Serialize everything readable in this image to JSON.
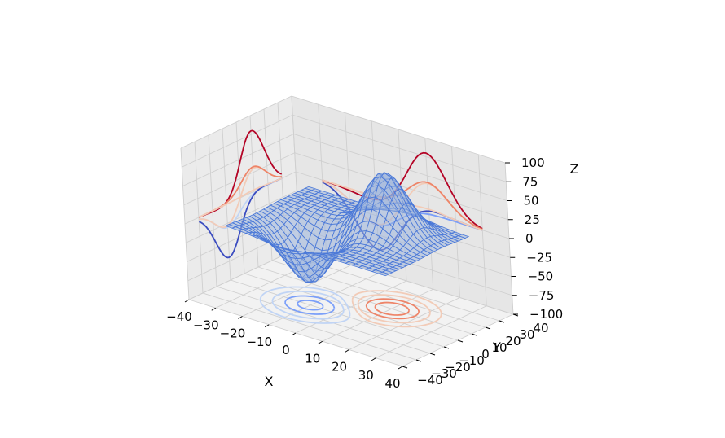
{
  "chart_data": {
    "type": "surface3d",
    "title": "",
    "xlabel": "X",
    "ylabel": "Y",
    "zlabel": "Z",
    "xlim": [
      -40,
      40
    ],
    "ylim": [
      -40,
      40
    ],
    "zlim": [
      -100,
      100
    ],
    "xticks": [
      "−40",
      "−30",
      "−20",
      "−10",
      "0",
      "10",
      "20",
      "30",
      "40"
    ],
    "yticks": [
      "−40",
      "−30",
      "−20",
      "−10",
      "0",
      "10",
      "20",
      "30",
      "40"
    ],
    "zticks": [
      "−100",
      "−75",
      "−50",
      "−25",
      "0",
      "25",
      "50",
      "75",
      "100"
    ],
    "grid": true,
    "surface": {
      "description": "wireframe surface with a peak near (x=10, y=10, z≈80) and a trough near (x=-10, y=-10, z≈-70)",
      "color": "#4a78d8",
      "x_range": [
        -30,
        30
      ],
      "y_range": [
        -30,
        30
      ],
      "peak": {
        "x": 10,
        "y": 10,
        "z": 80
      },
      "trough": {
        "x": -10,
        "y": -10,
        "z": -70
      }
    },
    "contour_projections": [
      "z offset -100",
      "x offset -40",
      "y offset 40"
    ],
    "colormap": [
      "#3b4cc0",
      "#7b9ff9",
      "#c0d4f5",
      "#f2cbb7",
      "#ee8468",
      "#b40426"
    ]
  }
}
